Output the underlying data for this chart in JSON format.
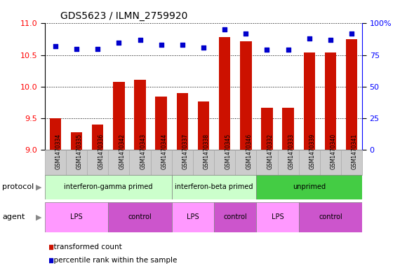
{
  "title": "GDS5623 / ILMN_2759920",
  "samples": [
    "GSM1470334",
    "GSM1470335",
    "GSM1470336",
    "GSM1470342",
    "GSM1470343",
    "GSM1470344",
    "GSM1470337",
    "GSM1470338",
    "GSM1470345",
    "GSM1470346",
    "GSM1470332",
    "GSM1470333",
    "GSM1470339",
    "GSM1470340",
    "GSM1470341"
  ],
  "transformed_count": [
    9.5,
    9.28,
    9.4,
    10.07,
    10.11,
    9.84,
    9.9,
    9.76,
    10.78,
    10.72,
    9.67,
    9.67,
    10.54,
    10.54,
    10.75
  ],
  "percentile_rank": [
    82,
    80,
    80,
    85,
    87,
    83,
    83,
    81,
    95,
    92,
    79,
    79,
    88,
    87,
    92
  ],
  "ylim_left": [
    9,
    11
  ],
  "ylim_right": [
    0,
    100
  ],
  "yticks_left": [
    9,
    9.5,
    10,
    10.5,
    11
  ],
  "yticks_right": [
    0,
    25,
    50,
    75,
    100
  ],
  "bar_color": "#cc1100",
  "dot_color": "#0000cc",
  "protocol_groups": [
    {
      "label": "interferon-gamma primed",
      "start": 0,
      "end": 6,
      "color": "#ccffcc"
    },
    {
      "label": "interferon-beta primed",
      "start": 6,
      "end": 10,
      "color": "#ccffcc"
    },
    {
      "label": "unprimed",
      "start": 10,
      "end": 15,
      "color": "#44cc44"
    }
  ],
  "agent_groups": [
    {
      "label": "LPS",
      "start": 0,
      "end": 3,
      "color": "#ff99ff"
    },
    {
      "label": "control",
      "start": 3,
      "end": 6,
      "color": "#cc55cc"
    },
    {
      "label": "LPS",
      "start": 6,
      "end": 8,
      "color": "#ff99ff"
    },
    {
      "label": "control",
      "start": 8,
      "end": 10,
      "color": "#cc55cc"
    },
    {
      "label": "LPS",
      "start": 10,
      "end": 12,
      "color": "#ff99ff"
    },
    {
      "label": "control",
      "start": 12,
      "end": 15,
      "color": "#cc55cc"
    }
  ],
  "protocol_label": "protocol",
  "agent_label": "agent",
  "legend_bar_label": "transformed count",
  "legend_dot_label": "percentile rank within the sample",
  "sample_box_color": "#cccccc",
  "sample_box_edge": "#aaaaaa"
}
